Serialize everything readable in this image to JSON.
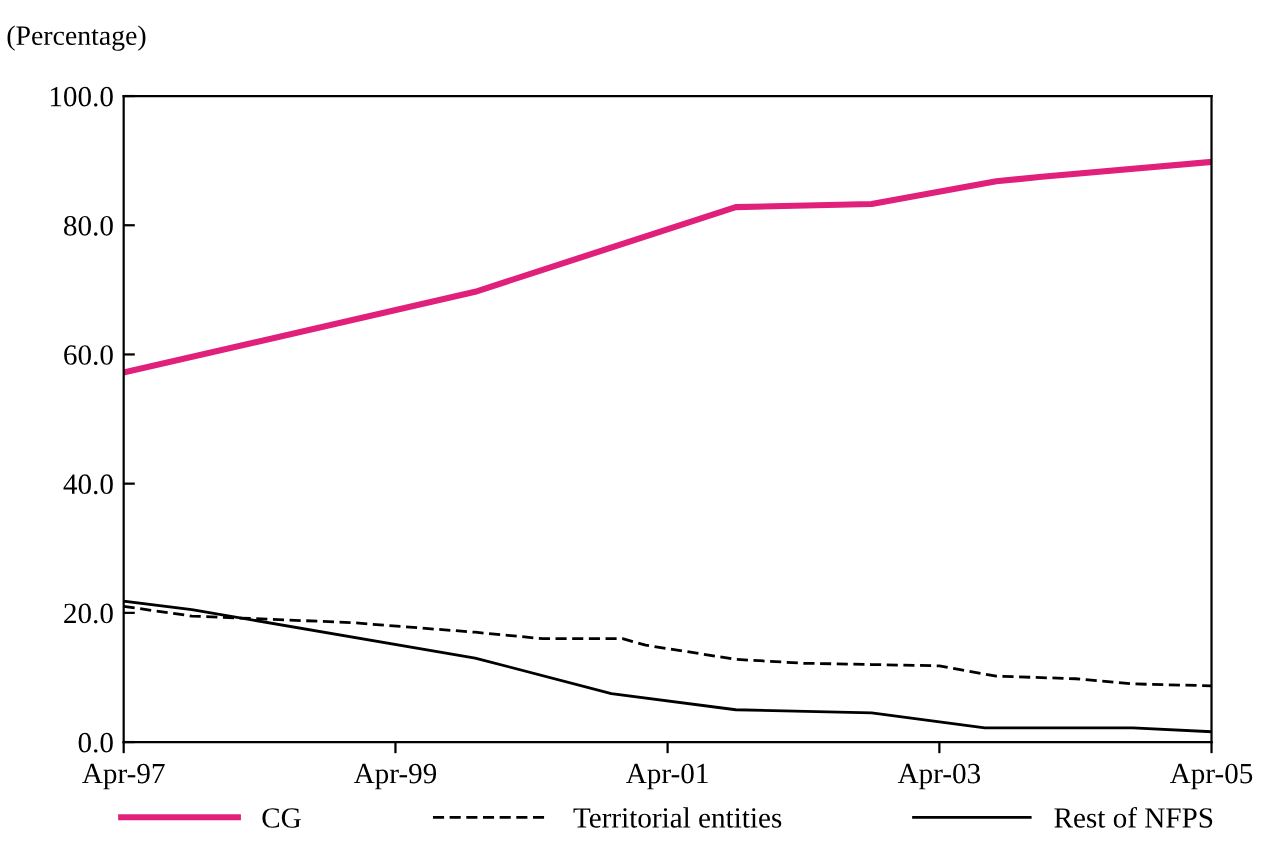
{
  "chart_data": {
    "type": "line",
    "ylabel": "(Percentage)",
    "series": [
      {
        "name": "CG",
        "color": "#e0207a",
        "line_style": "solid",
        "x": [
          "1997-04",
          "1999-11",
          "2001-10",
          "2002-10",
          "2003-09",
          "2004-01",
          "2005-04"
        ],
        "values": [
          57.2,
          69.7,
          82.8,
          83.3,
          86.8,
          87.5,
          89.8
        ]
      },
      {
        "name": "Territorial entities",
        "color": "#000000",
        "line_style": "dashed",
        "x": [
          "1997-04",
          "1997-10",
          "1998-12",
          "1999-11",
          "2000-05",
          "2000-12",
          "2001-02",
          "2001-10",
          "2002-04",
          "2002-10",
          "2003-04",
          "2003-09",
          "2004-04",
          "2004-09",
          "2005-04"
        ],
        "values": [
          21.0,
          19.5,
          18.5,
          17.0,
          16.0,
          16.0,
          15.0,
          12.8,
          12.2,
          12.0,
          11.8,
          10.2,
          9.8,
          9.0,
          8.7
        ]
      },
      {
        "name": "Rest of NFPS",
        "color": "#000000",
        "line_style": "solid",
        "x": [
          "1997-04",
          "1997-10",
          "1999-11",
          "2000-11",
          "2001-10",
          "2002-10",
          "2003-08",
          "2004-09",
          "2005-04"
        ],
        "values": [
          21.8,
          20.5,
          13.0,
          7.5,
          5.0,
          4.5,
          2.2,
          2.2,
          1.6
        ]
      }
    ],
    "xlim": [
      "1997-04",
      "2005-04"
    ],
    "xticks": [
      {
        "value": "1997-04",
        "label": "Apr-97"
      },
      {
        "value": "1999-04",
        "label": "Apr-99"
      },
      {
        "value": "2001-04",
        "label": "Apr-01"
      },
      {
        "value": "2003-04",
        "label": "Apr-03"
      },
      {
        "value": "2005-04",
        "label": "Apr-05"
      }
    ],
    "ylim": [
      0,
      100
    ],
    "yticks": [
      {
        "value": 0,
        "label": "0.0"
      },
      {
        "value": 20,
        "label": "20.0"
      },
      {
        "value": 40,
        "label": "40.0"
      },
      {
        "value": 60,
        "label": "60.0"
      },
      {
        "value": 80,
        "label": "80.0"
      },
      {
        "value": 100,
        "label": "100.0"
      }
    ],
    "grid": false,
    "legend": "bottom"
  }
}
